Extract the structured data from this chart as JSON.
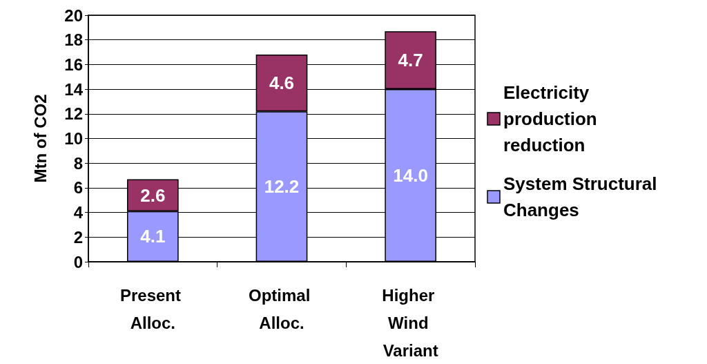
{
  "chart_data": {
    "type": "bar",
    "stacked": true,
    "ylabel": "Mtn of CO2",
    "categories": [
      "Present Alloc.",
      "Optimal Alloc.",
      "Higher Wind Variant"
    ],
    "series": [
      {
        "name": "System Structural Changes",
        "color": "#9999ff",
        "values": [
          4.1,
          12.2,
          14.0
        ],
        "value_labels": [
          "4.1",
          "12.2",
          "14.0"
        ]
      },
      {
        "name": "Electricity production reduction",
        "color": "#993366",
        "values": [
          2.6,
          4.6,
          4.7
        ],
        "value_labels": [
          "2.6",
          "4.6",
          "4.7"
        ]
      }
    ],
    "ylim": [
      0,
      20
    ],
    "yticks": [
      0,
      2,
      4,
      6,
      8,
      10,
      12,
      14,
      16,
      18,
      20
    ],
    "grid": "y",
    "legend": "right"
  }
}
